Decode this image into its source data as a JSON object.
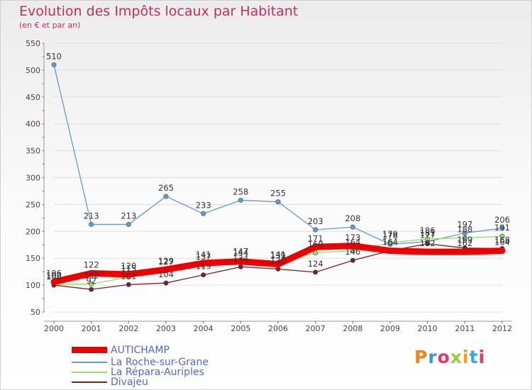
{
  "chart_data": {
    "type": "line",
    "title": "Evolution des Impôts locaux par Habitant",
    "subtitle": "(en € et par an)",
    "xlabel": "",
    "ylabel": "",
    "x": [
      "2000",
      "2001",
      "2002",
      "2003",
      "2004",
      "2005",
      "2006",
      "2007",
      "2008",
      "2009",
      "2010",
      "2011",
      "2012"
    ],
    "ylim": [
      50,
      550
    ],
    "yticks": [
      50,
      100,
      150,
      200,
      250,
      300,
      350,
      400,
      450,
      500,
      550
    ],
    "legend_position": "bottom-left",
    "series": [
      {
        "name": "AUTICHAMP",
        "color": "#ee0000",
        "values": [
          106,
          122,
          120,
          129,
          141,
          144,
          139,
          171,
          173,
          164,
          162,
          162,
          164
        ]
      },
      {
        "name": "La Roche-sur-Grane",
        "color": "#6699cc",
        "values": [
          510,
          213,
          213,
          265,
          233,
          258,
          255,
          203,
          208,
          176,
          181,
          197,
          206
        ]
      },
      {
        "name": "La Répara-Auriples",
        "color": "#99dd66",
        "values": [
          102,
          102,
          115,
          127,
          137,
          147,
          141,
          160,
          164,
          179,
          186,
          188,
          191
        ]
      },
      {
        "name": "Divajeu",
        "color": "#772222",
        "values": [
          100,
          92,
          101,
          104,
          119,
          134,
          130,
          124,
          146,
          164,
          177,
          169,
          168
        ]
      }
    ]
  },
  "logo": {
    "text": "Proxiti",
    "colors": [
      "#f08020",
      "#3399dd",
      "#ee3366",
      "#99cc33",
      "#f0a020",
      "#33aadd",
      "#ee3366"
    ]
  }
}
